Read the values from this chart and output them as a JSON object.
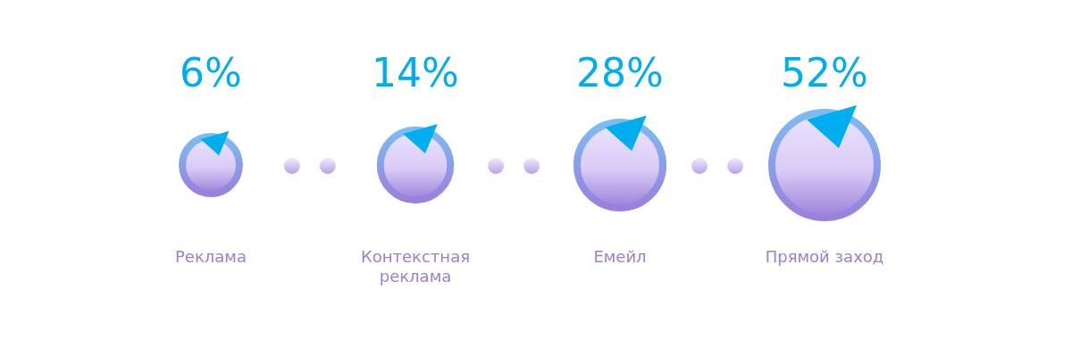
{
  "chart_data": {
    "type": "other",
    "categories": [
      "Реклама",
      "Контекстная реклама",
      "Емейл",
      "Прямой заход"
    ],
    "values": [
      6,
      14,
      28,
      52
    ],
    "value_labels": [
      "6%",
      "14%",
      "28%",
      "52%"
    ],
    "color": "#00aeef"
  }
}
